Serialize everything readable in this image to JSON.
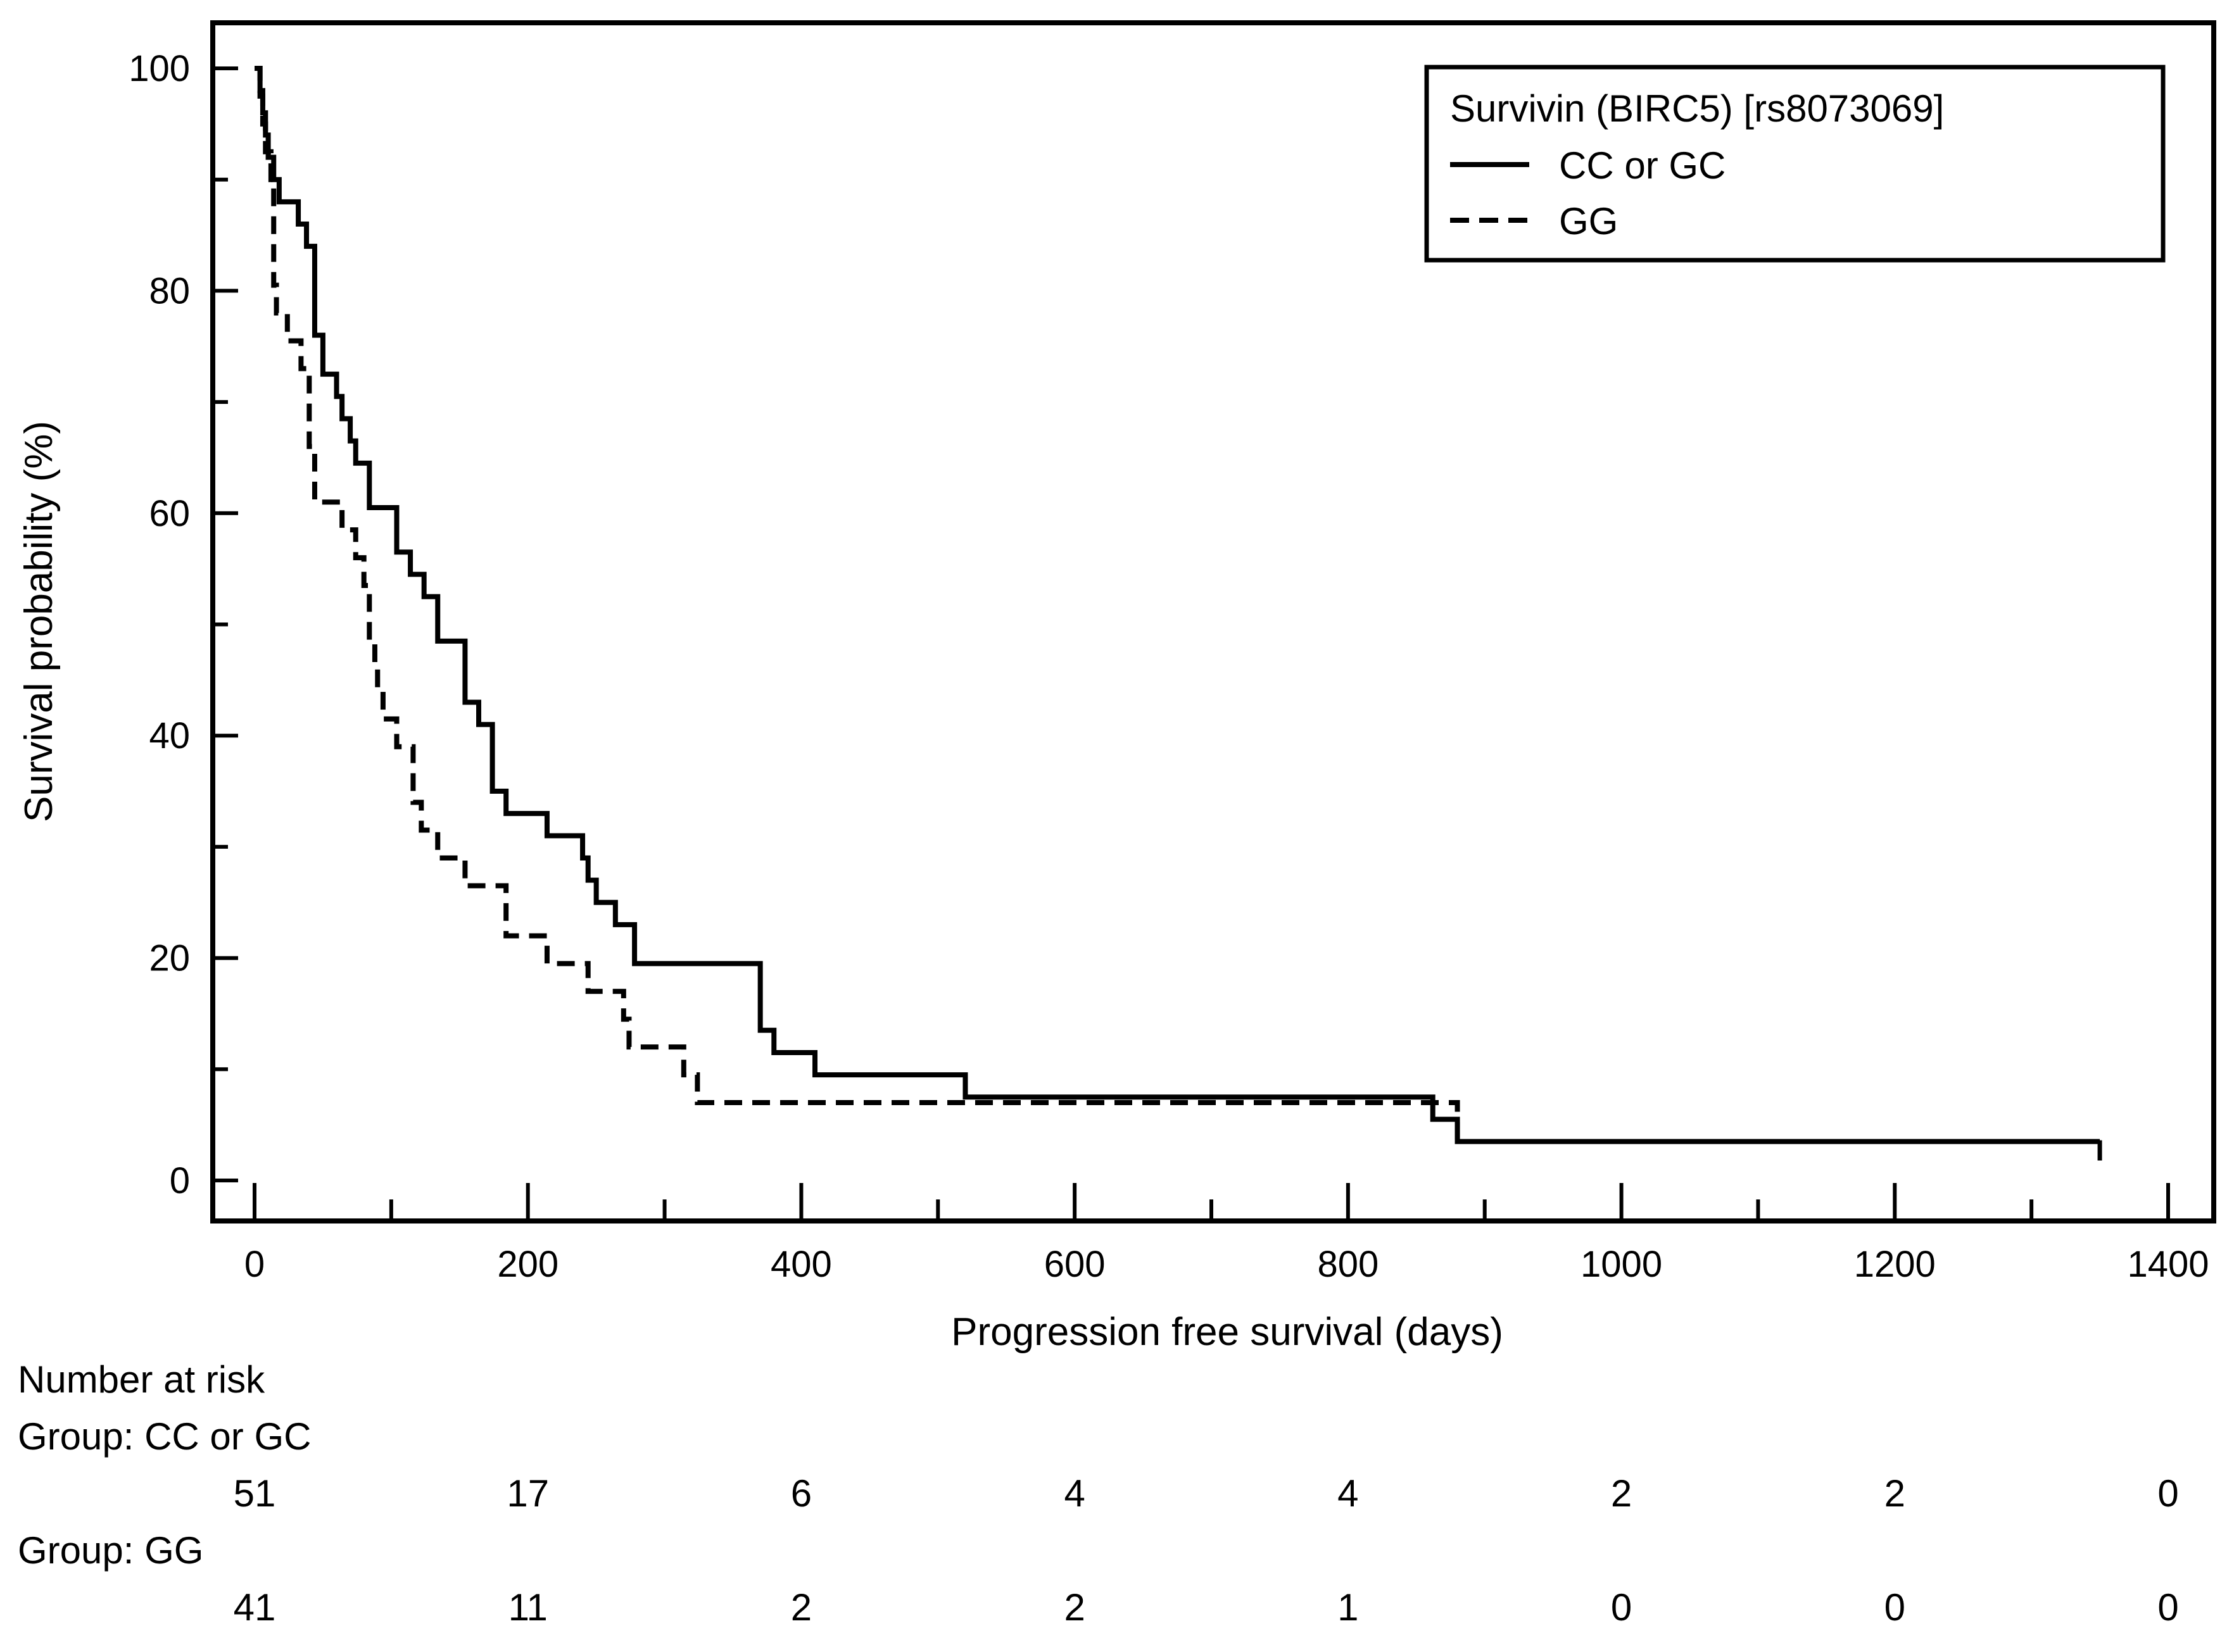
{
  "chart_data": {
    "type": "line",
    "subtype": "kaplan-meier",
    "title": "",
    "xlabel": "Progression free survival (days)",
    "ylabel": "Survival probability (%)",
    "xlim": [
      0,
      1400
    ],
    "ylim": [
      0,
      100
    ],
    "xticks": [
      0,
      200,
      400,
      600,
      800,
      1000,
      1200,
      1400
    ],
    "yticks": [
      0,
      20,
      40,
      60,
      80,
      100
    ],
    "x_minor_step": 100,
    "y_minor_step": 10,
    "grid": false,
    "legend": {
      "title": "Survivin (BIRC5) [rs8073069]",
      "position": "top-right",
      "entries": [
        {
          "label": "CC or GC",
          "style": "solid"
        },
        {
          "label": "GG",
          "style": "dashed"
        }
      ]
    },
    "series": [
      {
        "name": "CC or GC",
        "style": "solid",
        "color": "#000000",
        "x": [
          0,
          4,
          6,
          8,
          10,
          14,
          18,
          32,
          38,
          44,
          50,
          60,
          64,
          70,
          74,
          84,
          94,
          104,
          114,
          124,
          134,
          144,
          154,
          164,
          174,
          184,
          194,
          204,
          214,
          240,
          244,
          250,
          264,
          278,
          370,
          380,
          410,
          520,
          862,
          870,
          880,
          1350
        ],
        "y": [
          100,
          98,
          96,
          94,
          92,
          90,
          88,
          86,
          84,
          76,
          72.5,
          70.5,
          68.5,
          66.5,
          64.5,
          60.5,
          60.5,
          56.5,
          54.5,
          52.5,
          48.5,
          48.5,
          43,
          41,
          35,
          33,
          33,
          33,
          31,
          29,
          27,
          25,
          23,
          19.5,
          13.5,
          11.5,
          9.5,
          7.5,
          5.5,
          5.5,
          3.5,
          3.5
        ]
      },
      {
        "name": "GG",
        "style": "dashed",
        "color": "#000000",
        "x": [
          0,
          4,
          6,
          8,
          12,
          14,
          16,
          24,
          34,
          40,
          44,
          58,
          64,
          74,
          80,
          84,
          88,
          90,
          94,
          104,
          116,
          122,
          126,
          134,
          154,
          164,
          184,
          214,
          224,
          244,
          270,
          274,
          314,
          324,
          334,
          862,
          880,
          1350
        ],
        "y": [
          100,
          97.5,
          95,
          92.5,
          90,
          80.5,
          78,
          75.5,
          73,
          66,
          61,
          61,
          58.5,
          56,
          53.5,
          48.5,
          46.5,
          44,
          41.5,
          39,
          34,
          31.5,
          31.5,
          29,
          26.5,
          26.5,
          22,
          19.5,
          19.5,
          17,
          14.5,
          12,
          9.5,
          7,
          7,
          7,
          3.5,
          3.5
        ]
      }
    ]
  },
  "number_at_risk": {
    "heading": "Number at risk",
    "times": [
      0,
      200,
      400,
      600,
      800,
      1000,
      1200,
      1400
    ],
    "groups": [
      {
        "label": "Group: CC or GC",
        "counts": [
          "51",
          "17",
          "6",
          "4",
          "4",
          "2",
          "2",
          "0"
        ]
      },
      {
        "label": "Group: GG",
        "counts": [
          "41",
          "11",
          "2",
          "2",
          "1",
          "0",
          "0",
          "0"
        ]
      }
    ]
  }
}
